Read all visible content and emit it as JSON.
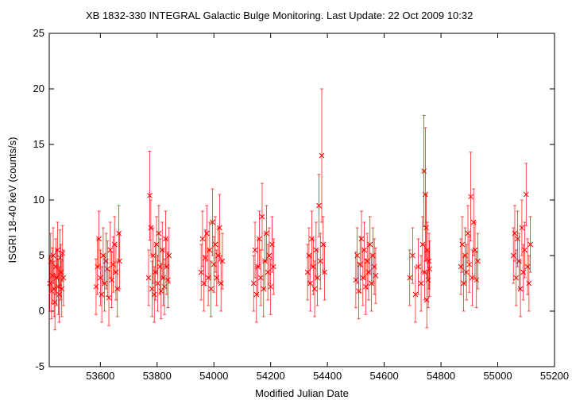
{
  "chart_data": {
    "type": "scatter",
    "title": "XB 1832-330    INTEGRAL Galactic Bulge Monitoring.  Last Update: 22 Oct 2009 10:32",
    "xlabel": "Modified Julian Date",
    "ylabel": "ISGRI 18-40 keV (counts/s)",
    "xlim": [
      53420,
      55200
    ],
    "ylim": [
      -5,
      25
    ],
    "x_ticks": [
      53600,
      53800,
      54000,
      54200,
      54400,
      54600,
      54800,
      55000,
      55200
    ],
    "y_ticks": [
      -5,
      0,
      5,
      10,
      15,
      20,
      25
    ],
    "grid": false,
    "legend": "none",
    "marker": "x",
    "color": "#ff0000",
    "series": [
      {
        "x": [
          53422,
          53425,
          53428,
          53431,
          53434,
          53437,
          53440,
          53443,
          53446,
          53449,
          53452,
          53455,
          53458,
          53461,
          53464,
          53467,
          53470,
          53585,
          53590,
          53595,
          53600,
          53605,
          53610,
          53615,
          53620,
          53625,
          53630,
          53635,
          53640,
          53645,
          53650,
          53655,
          53660,
          53665,
          53668,
          53770,
          53774,
          53778,
          53782,
          53786,
          53790,
          53794,
          53798,
          53802,
          53806,
          53810,
          53814,
          53818,
          53822,
          53826,
          53830,
          53834,
          53838,
          53842,
          53955,
          53960,
          53965,
          53970,
          53975,
          53980,
          53985,
          53990,
          53995,
          54000,
          54005,
          54010,
          54015,
          54020,
          54025,
          54030,
          54140,
          54145,
          54150,
          54155,
          54160,
          54165,
          54170,
          54175,
          54180,
          54185,
          54190,
          54195,
          54200,
          54205,
          54210,
          54330,
          54335,
          54340,
          54345,
          54350,
          54355,
          54360,
          54365,
          54370,
          54375,
          54380,
          54385,
          54390,
          54500,
          54505,
          54510,
          54515,
          54520,
          54525,
          54530,
          54535,
          54540,
          54545,
          54550,
          54555,
          54560,
          54565,
          54570,
          54690,
          54700,
          54710,
          54720,
          54730,
          54735,
          54740,
          54742,
          54745,
          54748,
          54750,
          54752,
          54755,
          54758,
          54760,
          54870,
          54875,
          54880,
          54885,
          54890,
          54895,
          54900,
          54905,
          54910,
          54915,
          54920,
          54925,
          54930,
          55055,
          55060,
          55065,
          55070,
          55075,
          55080,
          55085,
          55090,
          55095,
          55100,
          55105,
          55110,
          55115
        ],
        "y": [
          2.5,
          4.5,
          1.8,
          3.2,
          5.0,
          2.0,
          0.8,
          4.0,
          3.0,
          5.5,
          2.2,
          1.5,
          4.8,
          3.5,
          2.0,
          5.2,
          3.0,
          2.2,
          4.0,
          6.5,
          3.0,
          1.5,
          5.0,
          2.5,
          4.5,
          3.8,
          1.2,
          5.5,
          2.8,
          4.2,
          6.0,
          3.5,
          2.0,
          7.0,
          4.5,
          3.0,
          10.4,
          7.5,
          2.0,
          5.0,
          1.5,
          3.5,
          6.0,
          2.5,
          7.0,
          4.0,
          1.8,
          5.5,
          3.0,
          2.2,
          6.5,
          4.0,
          2.8,
          5.0,
          3.5,
          6.5,
          2.5,
          4.8,
          7.0,
          3.0,
          5.5,
          2.0,
          8.0,
          4.2,
          6.0,
          3.0,
          5.0,
          7.5,
          2.5,
          4.5,
          2.5,
          5.5,
          1.5,
          4.0,
          6.5,
          3.0,
          8.5,
          2.0,
          4.5,
          7.0,
          3.5,
          5.0,
          2.2,
          6.0,
          4.0,
          3.5,
          5.0,
          2.5,
          6.5,
          4.0,
          2.0,
          5.5,
          3.0,
          9.5,
          4.5,
          14.0,
          6.0,
          3.5,
          2.8,
          5.0,
          1.8,
          4.2,
          6.5,
          3.0,
          5.5,
          2.2,
          4.5,
          3.5,
          6.0,
          2.5,
          5.0,
          4.0,
          3.2,
          3.0,
          5.0,
          1.5,
          4.0,
          2.5,
          6.0,
          12.6,
          3.5,
          10.5,
          7.5,
          1.0,
          5.5,
          2.8,
          4.5,
          3.8,
          4.0,
          6.0,
          2.5,
          5.0,
          3.5,
          7.0,
          4.2,
          10.3,
          3.0,
          8.0,
          5.5,
          2.8,
          4.5,
          5.0,
          7.0,
          3.0,
          6.5,
          4.5,
          2.0,
          7.5,
          3.5,
          5.5,
          10.5,
          4.0,
          2.5,
          6.0
        ],
        "yerr": [
          2.5,
          2.5,
          2.5,
          2.5,
          2.5,
          2.5,
          2.5,
          2.5,
          2.5,
          2.5,
          2.5,
          2.5,
          2.5,
          2.5,
          2.5,
          2.5,
          2.5,
          2.5,
          2.5,
          2.5,
          2.5,
          2.5,
          2.5,
          2.5,
          2.5,
          2.5,
          2.5,
          2.5,
          2.5,
          2.5,
          2.5,
          2.5,
          2.5,
          2.5,
          2.5,
          2.5,
          4.0,
          2.5,
          2.5,
          2.5,
          2.5,
          2.5,
          2.5,
          2.5,
          2.5,
          2.5,
          2.5,
          2.5,
          2.5,
          2.5,
          2.5,
          2.5,
          2.5,
          2.5,
          2.5,
          2.5,
          2.5,
          2.5,
          2.5,
          2.5,
          2.5,
          2.5,
          3.0,
          2.5,
          2.5,
          2.5,
          2.5,
          3.0,
          2.5,
          2.5,
          2.5,
          2.5,
          2.5,
          2.5,
          2.5,
          2.5,
          3.0,
          2.5,
          2.5,
          2.5,
          2.5,
          2.5,
          2.5,
          2.5,
          2.5,
          2.5,
          2.5,
          2.5,
          2.5,
          2.5,
          2.5,
          2.5,
          2.5,
          2.8,
          2.5,
          6.0,
          2.5,
          2.5,
          2.5,
          2.5,
          2.5,
          2.5,
          2.5,
          2.5,
          2.5,
          2.5,
          2.5,
          2.5,
          2.5,
          2.5,
          2.5,
          2.5,
          2.5,
          2.5,
          2.5,
          2.5,
          2.5,
          2.5,
          2.5,
          5.0,
          2.5,
          6.0,
          3.0,
          2.5,
          2.5,
          2.5,
          2.5,
          2.5,
          2.5,
          2.5,
          2.5,
          2.5,
          2.5,
          2.5,
          2.5,
          4.0,
          2.5,
          3.0,
          2.5,
          2.5,
          2.5,
          2.5,
          2.5,
          2.5,
          2.5,
          2.5,
          2.5,
          2.5,
          2.5,
          2.5,
          2.8,
          2.5,
          2.5,
          2.5
        ]
      }
    ]
  }
}
